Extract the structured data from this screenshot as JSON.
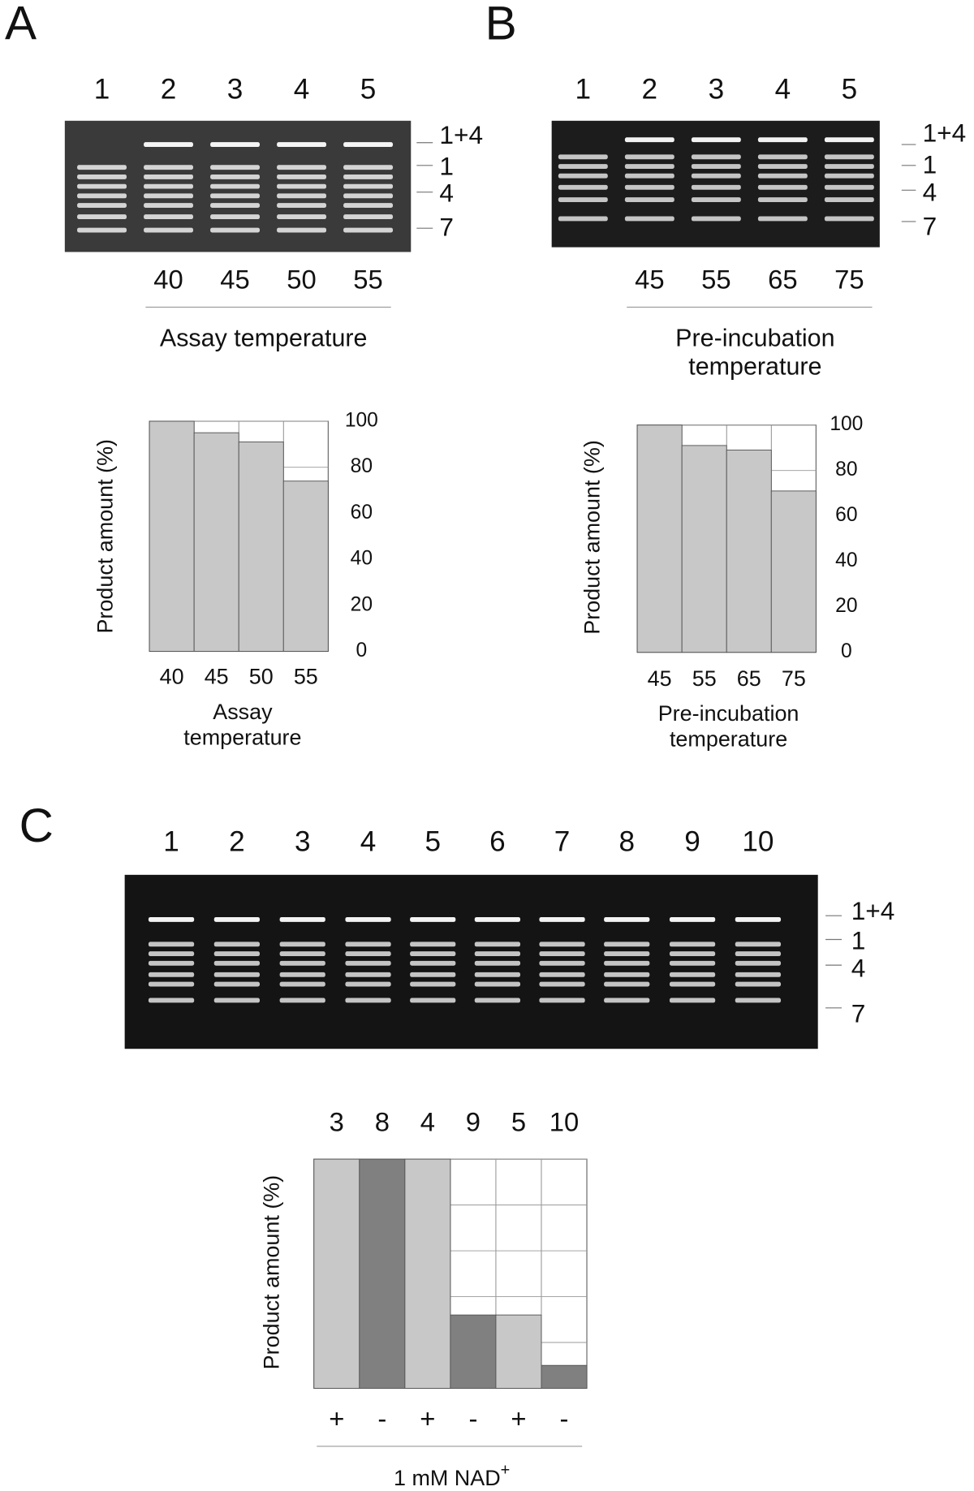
{
  "panels": [
    {
      "label": "A",
      "lanes": [
        "1",
        "2",
        "3",
        "4",
        "5"
      ],
      "markers": [
        "1+4",
        "1",
        "4",
        "7"
      ],
      "temps": [
        "40",
        "45",
        "50",
        "55"
      ],
      "temp_title": [
        "Assay temperature"
      ]
    },
    {
      "label": "B",
      "lanes": [
        "1",
        "2",
        "3",
        "4",
        "5"
      ],
      "markers": [
        "1+4",
        "1",
        "4",
        "7"
      ],
      "temps": [
        "45",
        "55",
        "65",
        "75"
      ],
      "temp_title": [
        "Pre-incubation",
        "temperature"
      ]
    },
    {
      "label": "C",
      "lanes": [
        "1",
        "2",
        "3",
        "4",
        "5",
        "6",
        "7",
        "8",
        "9",
        "10"
      ],
      "markers": [
        "1+4",
        "1",
        "4",
        "7"
      ]
    }
  ],
  "chart_data": [
    {
      "type": "bar",
      "ylabel": "Product amount (%)",
      "categories": [
        "40",
        "45",
        "50",
        "55"
      ],
      "values": [
        100,
        95,
        91,
        74
      ],
      "xlabel": [
        "Assay",
        "temperature"
      ],
      "color": "#c8c8c8",
      "ylim": [
        0,
        100
      ],
      "yticks": [
        0,
        20,
        40,
        60,
        80,
        100
      ],
      "grid": true
    },
    {
      "type": "bar",
      "ylabel": "Product amount (%)",
      "categories": [
        "45",
        "55",
        "65",
        "75"
      ],
      "values": [
        100,
        91,
        89,
        71
      ],
      "xlabel": [
        "Pre-incubation",
        "temperature"
      ],
      "color": "#c8c8c8",
      "ylim": [
        0,
        100
      ],
      "yticks": [
        0,
        20,
        40,
        60,
        80,
        100
      ],
      "grid": true
    },
    {
      "type": "bar",
      "ylabel": "Product amount (%)",
      "categories": [
        "3",
        "8",
        "4",
        "9",
        "5",
        "10"
      ],
      "values": [
        100,
        100,
        100,
        32,
        32,
        10
      ],
      "colors": [
        "#c8c8c8",
        "#808080",
        "#c8c8c8",
        "#808080",
        "#c8c8c8",
        "#808080"
      ],
      "conditions": [
        "+",
        "-",
        "+",
        "-",
        "+",
        "-"
      ],
      "xlabel": "1 mM NAD",
      "xlabel_superscript": "+",
      "ylim": [
        0,
        100
      ],
      "yticks": [
        0,
        20,
        40,
        60,
        80,
        100
      ],
      "grid": true,
      "ytick_labels": false
    }
  ]
}
